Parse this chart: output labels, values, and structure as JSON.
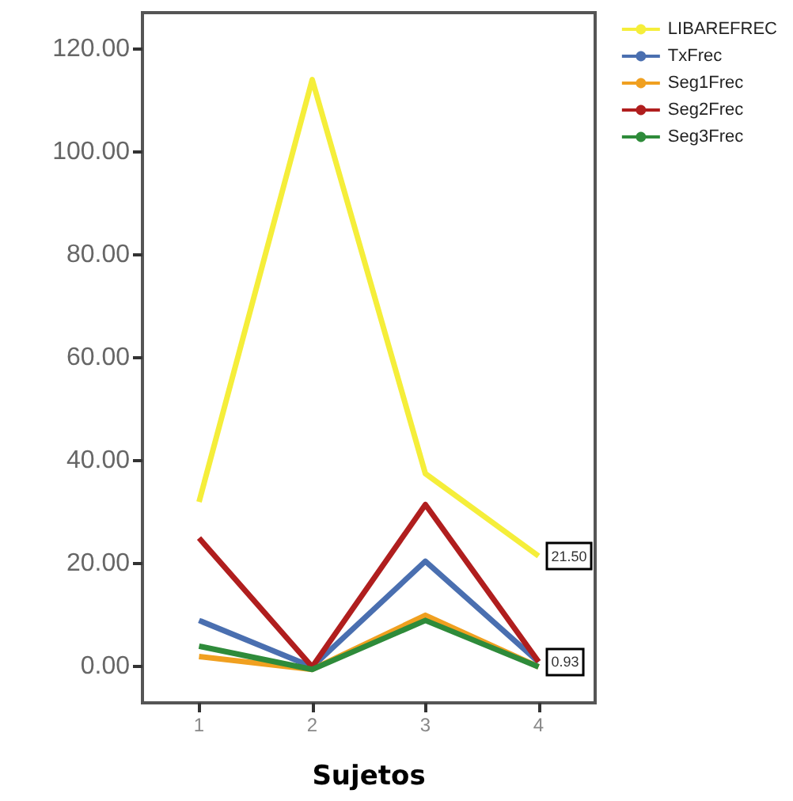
{
  "chart_data": {
    "type": "line",
    "xlabel": "Sujetos",
    "categories": [
      "1",
      "2",
      "3",
      "4"
    ],
    "series": [
      {
        "name": "LIBAREFREC",
        "color": "#f5ee3a",
        "values": [
          32,
          114,
          37.5,
          21.5
        ],
        "value_labels": [
          null,
          null,
          null,
          "21.50"
        ]
      },
      {
        "name": "TxFrec",
        "color": "#4a6fb0",
        "values": [
          9,
          0,
          20.5,
          0.93
        ],
        "value_labels": [
          null,
          null,
          null,
          "0.93"
        ]
      },
      {
        "name": "Seg1Frec",
        "color": "#f0a020",
        "values": [
          2,
          -0.5,
          10,
          0
        ]
      },
      {
        "name": "Seg2Frec",
        "color": "#b01e1e",
        "values": [
          25,
          0,
          31.5,
          1
        ]
      },
      {
        "name": "Seg3Frec",
        "color": "#2e8b3a",
        "values": [
          4,
          -0.5,
          9,
          0
        ]
      }
    ],
    "ylim": [
      -7,
      127
    ],
    "yticks": [
      {
        "value": 0,
        "label": "0.00"
      },
      {
        "value": 20,
        "label": "20.00"
      },
      {
        "value": 40,
        "label": "40.00"
      },
      {
        "value": 60,
        "label": "60.00"
      },
      {
        "value": 80,
        "label": "80.00"
      },
      {
        "value": 100,
        "label": "100.00"
      },
      {
        "value": 120,
        "label": "120.00"
      }
    ],
    "grid": false,
    "legend": "top right",
    "marker": "none",
    "line_style": "solid"
  }
}
